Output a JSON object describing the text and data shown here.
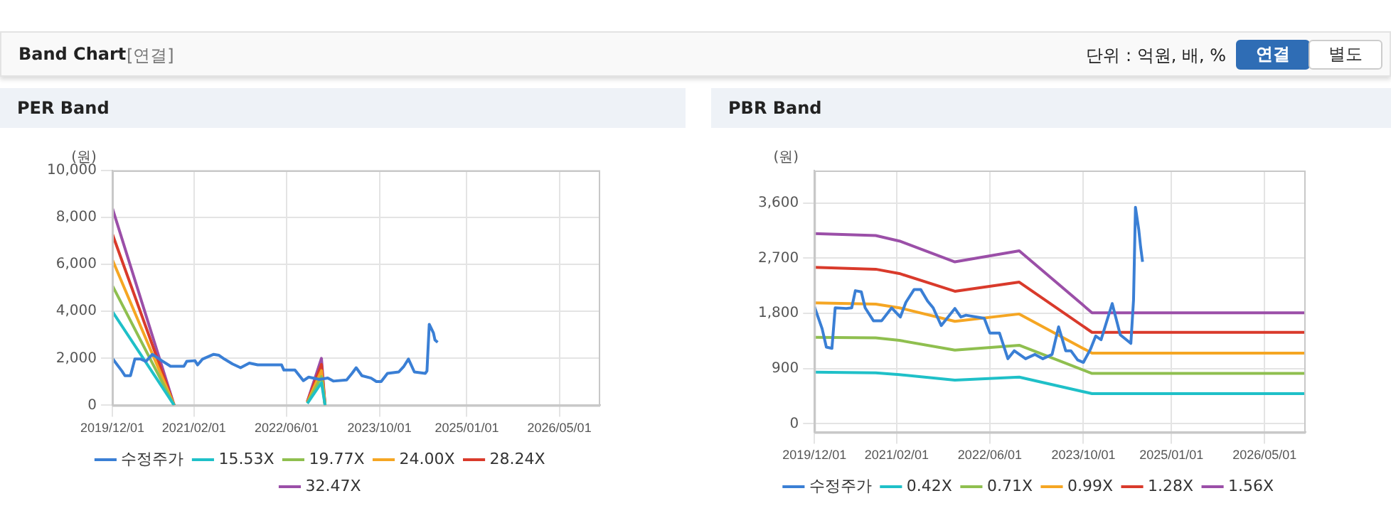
{
  "chart_data": [
    {
      "type": "other",
      "title": "Band Chart",
      "annotations": [
        "[연결]",
        "단위 : 억원, 배, %",
        "연결",
        "별도"
      ]
    },
    {
      "type": "line",
      "title": "PER Band",
      "ylabel": "(원)",
      "xlim": [
        "2019-12-01",
        "2026-12-01"
      ],
      "xticks": [
        {
          "value": "2019-12-01",
          "label": "2019/12/01"
        },
        {
          "value": "2021-02-01",
          "label": "2021/02/01"
        },
        {
          "value": "2022-06-01",
          "label": "2022/06/01"
        },
        {
          "value": "2023-10-01",
          "label": "2023/10/01"
        },
        {
          "value": "2025-01-01",
          "label": "2025/01/01"
        },
        {
          "value": "2026-05-01",
          "label": "2026/05/01"
        }
      ],
      "ylim": [
        0,
        10000
      ],
      "yticks": [
        {
          "value": 0,
          "label": "0"
        },
        {
          "value": 2000,
          "label": "2,000"
        },
        {
          "value": 4000,
          "label": "4,000"
        },
        {
          "value": 6000,
          "label": "6,000"
        },
        {
          "value": 8000,
          "label": "8,000"
        },
        {
          "value": 10000,
          "label": "10,000"
        }
      ],
      "grid": true,
      "legend": "bottom",
      "marker": "none",
      "line_style": "solid",
      "series": [
        {
          "name": "수정주가",
          "color": "#3a7fd5",
          "x": [
            "2019-12-01",
            "2020-01-20",
            "2020-02-05",
            "2020-03-05",
            "2020-03-28",
            "2020-04-28",
            "2020-05-25",
            "2020-06-28",
            "2020-08-03",
            "2020-10-01",
            "2020-12-10",
            "2020-12-25",
            "2021-02-06",
            "2021-02-20",
            "2021-03-18",
            "2021-05-15",
            "2021-06-12",
            "2021-07-10",
            "2021-08-22",
            "2021-10-03",
            "2021-11-18",
            "2022-01-01",
            "2022-05-06",
            "2022-05-18",
            "2022-07-15",
            "2022-08-28",
            "2022-09-25",
            "2022-11-21",
            "2023-01-03",
            "2023-02-01",
            "2023-04-12",
            "2023-05-10",
            "2023-06-01",
            "2023-07-01",
            "2023-08-18",
            "2023-09-15",
            "2023-10-10",
            "2023-11-12",
            "2024-01-10",
            "2024-02-06",
            "2024-03-01",
            "2024-04-01",
            "2024-05-28",
            "2024-06-06",
            "2024-06-18",
            "2024-07-10",
            "2024-07-18",
            "2024-08-01"
          ],
          "values": [
            2000,
            1460,
            1260,
            1260,
            1970,
            1970,
            1870,
            2170,
            1970,
            1660,
            1660,
            1870,
            1900,
            1720,
            1970,
            2170,
            2130,
            1970,
            1760,
            1600,
            1800,
            1720,
            1720,
            1500,
            1500,
            1050,
            1200,
            1100,
            1160,
            1030,
            1080,
            1360,
            1600,
            1260,
            1160,
            1010,
            1010,
            1360,
            1420,
            1660,
            1970,
            1420,
            1360,
            1460,
            3450,
            3080,
            2780,
            2680
          ]
        },
        {
          "name": "15.53X",
          "color": "#1fc0c8",
          "x": [
            "2019-12-01",
            "2020-10-20",
            "2021-06-01",
            "2022-09-18",
            "2022-12-01",
            "2022-12-20"
          ],
          "values": [
            4000,
            0,
            null,
            80,
            960,
            0
          ]
        },
        {
          "name": "19.77X",
          "color": "#8fbf4f",
          "x": [
            "2019-12-01",
            "2020-10-20",
            "2021-06-01",
            "2022-09-18",
            "2022-12-01",
            "2022-12-20"
          ],
          "values": [
            5100,
            0,
            null,
            100,
            1220,
            0
          ]
        },
        {
          "name": "24.00X",
          "color": "#f5a623",
          "x": [
            "2019-12-01",
            "2020-10-20",
            "2021-06-01",
            "2022-09-18",
            "2022-12-01",
            "2022-12-20"
          ],
          "values": [
            6200,
            0,
            null,
            120,
            1480,
            0
          ]
        },
        {
          "name": "28.24X",
          "color": "#d93a2b",
          "x": [
            "2019-12-01",
            "2020-10-20",
            "2021-06-01",
            "2022-09-18",
            "2022-12-01",
            "2022-12-20"
          ],
          "values": [
            7300,
            0,
            null,
            150,
            1740,
            0
          ]
        },
        {
          "name": "32.47X",
          "color": "#9b4fa8",
          "x": [
            "2019-12-01",
            "2020-10-20",
            "2021-06-01",
            "2022-09-18",
            "2022-12-01",
            "2022-12-20"
          ],
          "values": [
            8400,
            0,
            null,
            160,
            2000,
            0
          ]
        }
      ]
    },
    {
      "type": "line",
      "title": "PBR Band",
      "ylabel": "(원)",
      "xlim": [
        "2019-12-01",
        "2026-12-01"
      ],
      "xticks": [
        {
          "value": "2019-12-01",
          "label": "2019/12/01"
        },
        {
          "value": "2021-02-01",
          "label": "2021/02/01"
        },
        {
          "value": "2022-06-01",
          "label": "2022/06/01"
        },
        {
          "value": "2023-10-01",
          "label": "2023/10/01"
        },
        {
          "value": "2025-01-01",
          "label": "2025/01/01"
        },
        {
          "value": "2026-05-01",
          "label": "2026/05/01"
        }
      ],
      "ylim": [
        -140,
        4130
      ],
      "yticks": [
        {
          "value": 0,
          "label": "0"
        },
        {
          "value": 900,
          "label": "900"
        },
        {
          "value": 1800,
          "label": "1,800"
        },
        {
          "value": 2700,
          "label": "2,700"
        },
        {
          "value": 3600,
          "label": "3,600"
        }
      ],
      "grid": true,
      "legend": "bottom",
      "marker": "none",
      "line_style": "solid",
      "series": [
        {
          "name": "수정주가",
          "color": "#3a7fd5",
          "x": [
            "2019-12-01",
            "2020-01-10",
            "2020-02-01",
            "2020-03-01",
            "2020-03-18",
            "2020-05-15",
            "2020-06-12",
            "2020-07-01",
            "2020-08-01",
            "2020-08-21",
            "2020-10-03",
            "2020-11-15",
            "2021-01-06",
            "2021-02-20",
            "2021-03-21",
            "2021-05-03",
            "2021-06-06",
            "2021-07-12",
            "2021-08-10",
            "2021-09-21",
            "2021-12-01",
            "2022-01-01",
            "2022-01-28",
            "2022-05-03",
            "2022-06-01",
            "2022-07-21",
            "2022-09-03",
            "2022-10-06",
            "2022-12-04",
            "2023-01-21",
            "2023-03-04",
            "2023-04-21",
            "2023-05-25",
            "2023-07-01",
            "2023-07-28",
            "2023-09-01",
            "2023-10-01",
            "2023-11-06",
            "2023-12-04",
            "2024-01-01",
            "2024-02-28",
            "2024-04-10",
            "2024-06-04",
            "2024-06-18",
            "2024-06-28",
            "2024-07-15",
            "2024-07-25",
            "2024-08-04"
          ],
          "values": [
            1910,
            1550,
            1250,
            1230,
            1890,
            1880,
            1890,
            2170,
            2150,
            1890,
            1680,
            1680,
            1890,
            1740,
            1980,
            2190,
            2190,
            2000,
            1890,
            1600,
            1880,
            1740,
            1770,
            1720,
            1480,
            1480,
            1060,
            1190,
            1060,
            1130,
            1060,
            1130,
            1580,
            1190,
            1190,
            1040,
            1000,
            1210,
            1430,
            1370,
            1960,
            1450,
            1310,
            2020,
            3530,
            3170,
            2880,
            2640
          ]
        },
        {
          "name": "0.42X",
          "color": "#1fc0c8",
          "x": [
            "2019-12-01",
            "2020-10-15",
            "2021-02-15",
            "2021-12-01",
            "2022-11-01",
            "2023-11-15",
            "2026-12-01"
          ],
          "values": [
            840,
            830,
            800,
            710,
            760,
            490,
            490
          ]
        },
        {
          "name": "0.71X",
          "color": "#8fbf4f",
          "x": [
            "2019-12-01",
            "2020-10-15",
            "2021-02-15",
            "2021-12-01",
            "2022-11-01",
            "2023-11-15",
            "2026-12-01"
          ],
          "values": [
            1410,
            1400,
            1360,
            1200,
            1280,
            820,
            820
          ]
        },
        {
          "name": "0.99X",
          "color": "#f5a623",
          "x": [
            "2019-12-01",
            "2020-10-15",
            "2021-02-15",
            "2021-12-01",
            "2022-11-01",
            "2023-11-15",
            "2026-12-01"
          ],
          "values": [
            1970,
            1950,
            1890,
            1670,
            1790,
            1150,
            1150
          ]
        },
        {
          "name": "1.28X",
          "color": "#d93a2b",
          "x": [
            "2019-12-01",
            "2020-10-15",
            "2021-02-15",
            "2021-12-01",
            "2022-11-01",
            "2023-11-15",
            "2026-12-01"
          ],
          "values": [
            2550,
            2520,
            2450,
            2160,
            2310,
            1490,
            1490
          ]
        },
        {
          "name": "1.56X",
          "color": "#9b4fa8",
          "x": [
            "2019-12-01",
            "2020-10-15",
            "2021-02-15",
            "2021-12-01",
            "2022-11-01",
            "2023-11-15",
            "2026-12-01"
          ],
          "values": [
            3100,
            3070,
            2980,
            2640,
            2820,
            1810,
            1810
          ]
        }
      ]
    }
  ]
}
